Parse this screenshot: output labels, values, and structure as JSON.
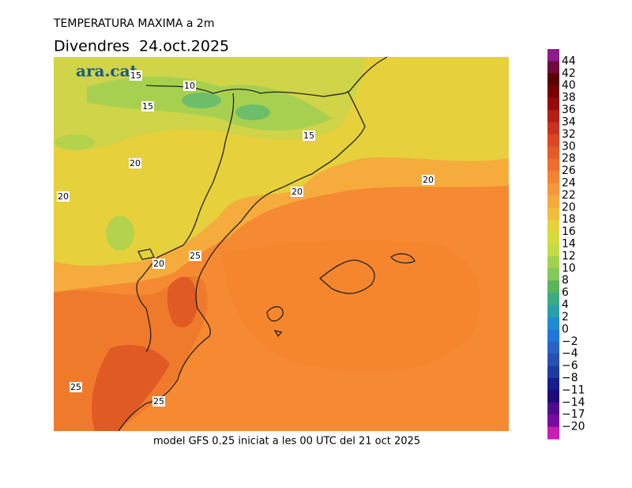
{
  "header": {
    "title": "TEMPERATURA MAXIMA a 2m",
    "date": "Divendres  24.oct.2025",
    "logo": "ara.cat"
  },
  "map": {
    "contour_labels": [
      "15",
      "10",
      "15",
      "15",
      "20",
      "20",
      "20",
      "20",
      "20",
      "25",
      "25",
      "25"
    ]
  },
  "footer": "model GFS 0.25 iniciat a les 00 UTC del 21 oct 2025",
  "colorbar": {
    "labels": [
      "44",
      "42",
      "40",
      "38",
      "36",
      "34",
      "32",
      "30",
      "28",
      "26",
      "24",
      "22",
      "20",
      "18",
      "16",
      "14",
      "12",
      "10",
      "8",
      "6",
      "4",
      "2",
      "0",
      "−2",
      "−4",
      "−6",
      "−8",
      "−11",
      "−14",
      "−17",
      "−20"
    ],
    "colors": [
      "#8c1c8c",
      "#6e0a3c",
      "#5a0000",
      "#780000",
      "#960a0a",
      "#b41e14",
      "#c8321e",
      "#dc4623",
      "#e65a28",
      "#f06e2d",
      "#f58232",
      "#f7963c",
      "#f5aa3c",
      "#f0be3c",
      "#e6d23c",
      "#d7dc3c",
      "#c3dc46",
      "#a0d250",
      "#82c85a",
      "#5ab45a",
      "#3caa82",
      "#28a0aa",
      "#1e8cd2",
      "#1e78dc",
      "#2864c8",
      "#2850b4",
      "#1e3ca0",
      "#141e8c",
      "#1e0a78",
      "#500a8c",
      "#780aa0",
      "#c81eb4"
    ]
  }
}
